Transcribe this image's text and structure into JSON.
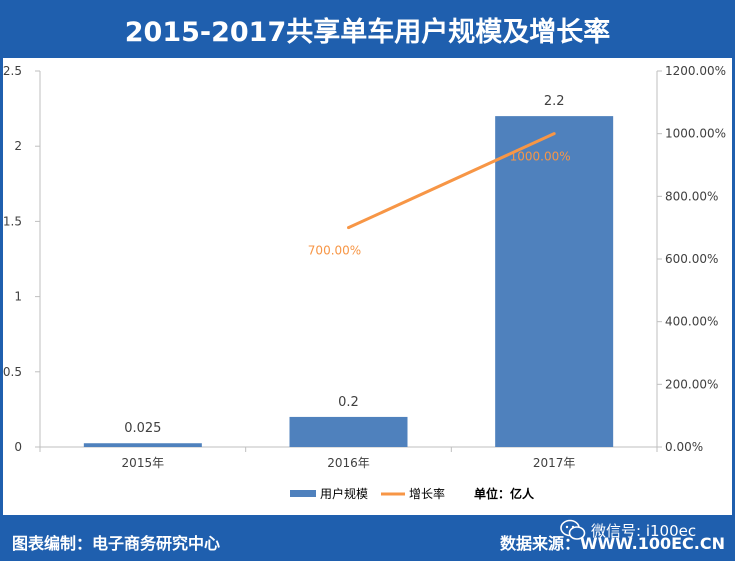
{
  "header": {
    "title": "2015-2017共享单车用户规模及增长率"
  },
  "footer": {
    "compiler": "图表编制：电子商务研究中心",
    "source": "数据来源：WWW.100EC.CN",
    "watermark": "微信号: i100ec"
  },
  "colors": {
    "frame": "#1f5fae",
    "bar": "#4f81bd",
    "line": "#f79646",
    "line_label": "#f79646",
    "axis_text": "#404040"
  },
  "chart_data": {
    "type": "bar",
    "title": "2015-2017共享单车用户规模及增长率",
    "categories": [
      "2015年",
      "2016年",
      "2017年"
    ],
    "series": [
      {
        "name": "用户规模",
        "type": "bar",
        "axis": "left",
        "values": [
          0.025,
          0.2,
          2.2
        ],
        "labels": [
          "0.025",
          "0.2",
          "2.2"
        ]
      },
      {
        "name": "增长率",
        "type": "line",
        "axis": "right",
        "values": [
          null,
          700,
          1000
        ],
        "labels": [
          "",
          "700.00%",
          "1000.00%"
        ]
      }
    ],
    "y_left": {
      "min": 0,
      "max": 2.5,
      "ticks": [
        "0",
        "0.5",
        "1",
        "1.5",
        "2",
        "2.5"
      ]
    },
    "y_right": {
      "min": 0,
      "max": 1200,
      "ticks": [
        "0.00%",
        "200.00%",
        "400.00%",
        "600.00%",
        "800.00%",
        "1000.00%",
        "1200.00%"
      ]
    },
    "unit_note": "单位：亿人",
    "legend_position": "bottom",
    "grid": false
  }
}
